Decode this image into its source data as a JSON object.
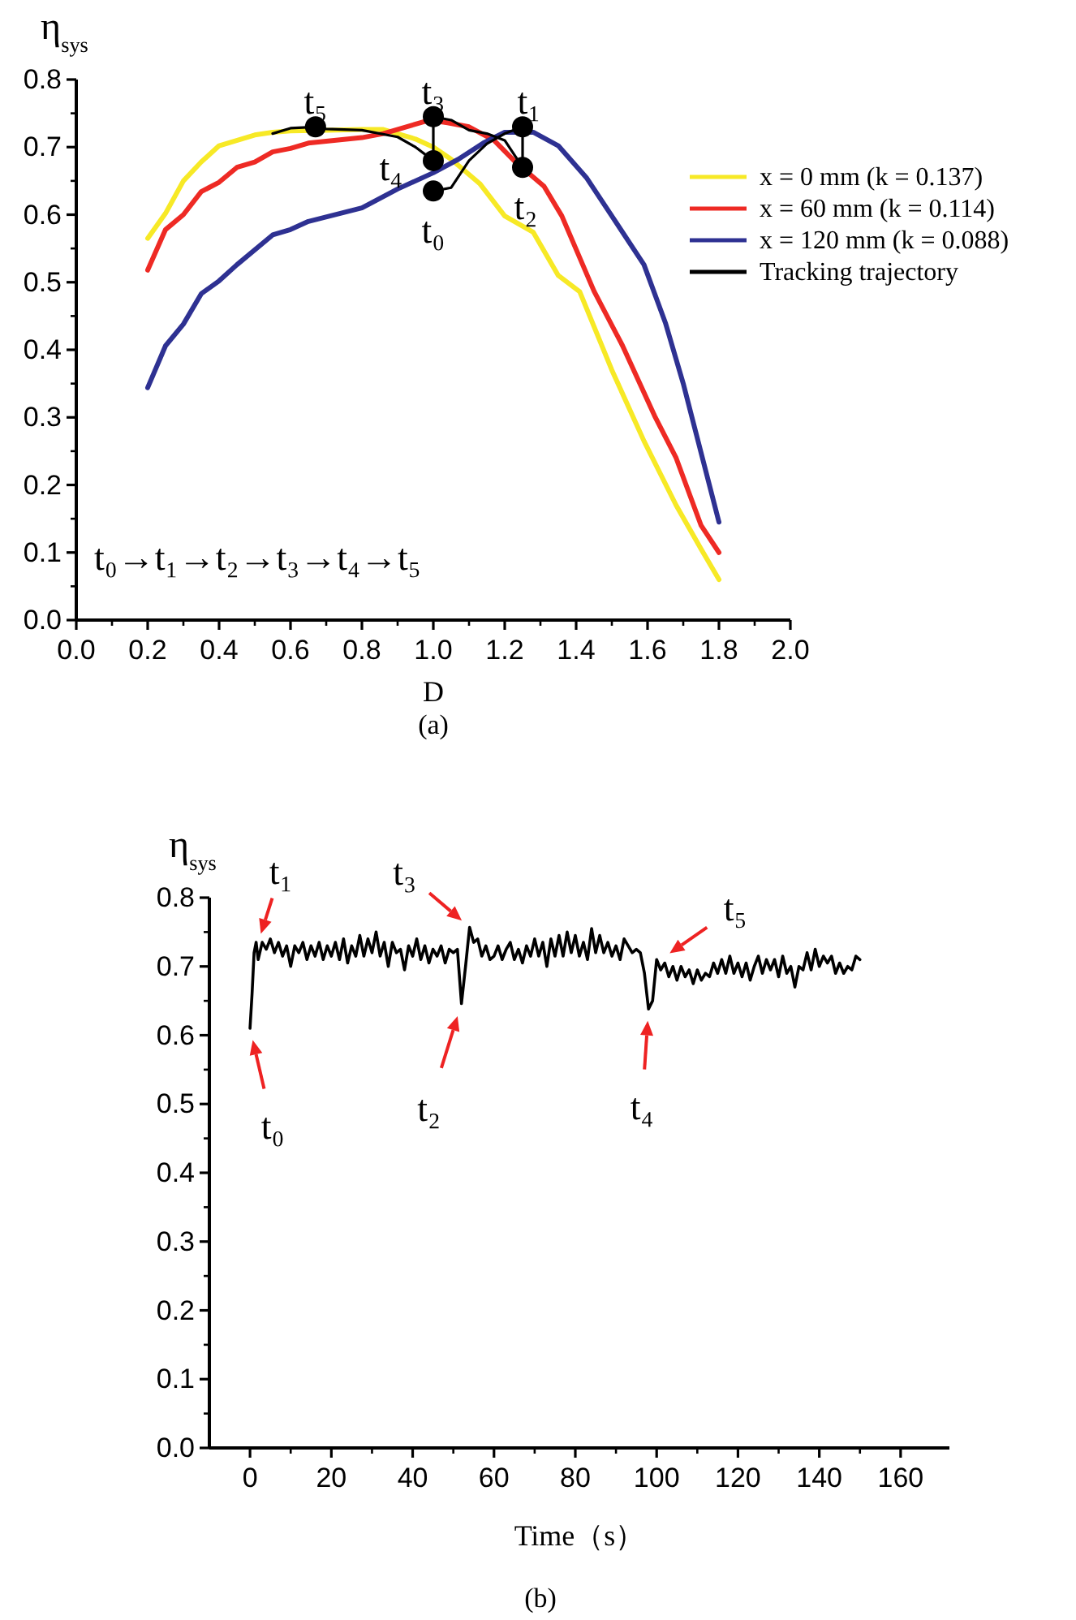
{
  "chart_data": [
    {
      "type": "line",
      "xlabel": "D",
      "ylabel": "η$_{sys}$",
      "xlim": [
        0,
        2
      ],
      "ylim": [
        0,
        0.8
      ],
      "xticks": [
        {
          "value": 0,
          "label": "0.0"
        },
        0.2,
        0.4,
        0.6,
        0.8,
        {
          "value": 1,
          "label": "1.0"
        },
        1.2,
        1.4,
        1.6,
        1.8,
        {
          "value": 2,
          "label": "2.0"
        }
      ],
      "yticks": [
        {
          "value": 0,
          "label": "0.0"
        },
        0.1,
        0.2,
        0.3,
        0.4,
        0.5,
        0.6,
        0.7,
        0.8
      ],
      "legend": "top right",
      "series": [
        {
          "name": "x = 0 mm (k = 0.137)",
          "color": "#f7e926",
          "x": [
            0.2,
            0.25,
            0.3,
            0.35,
            0.4,
            0.5,
            0.55,
            0.6,
            0.7,
            0.8,
            0.86,
            0.95,
            1.0,
            1.05,
            1.13,
            1.2,
            1.28,
            1.35,
            1.41,
            1.5,
            1.59,
            1.68,
            1.75,
            1.8
          ],
          "values": [
            0.565,
            0.602,
            0.65,
            0.678,
            0.702,
            0.718,
            0.722,
            0.724,
            0.725,
            0.726,
            0.726,
            0.712,
            0.7,
            0.682,
            0.646,
            0.598,
            0.574,
            0.51,
            0.486,
            0.37,
            0.265,
            0.17,
            0.105,
            0.06
          ]
        },
        {
          "name": "x = 60 mm (k = 0.114)",
          "color": "#ee2a24",
          "x": [
            0.2,
            0.25,
            0.3,
            0.35,
            0.4,
            0.45,
            0.5,
            0.55,
            0.6,
            0.65,
            0.8,
            0.86,
            0.99,
            1.04,
            1.1,
            1.17,
            1.23,
            1.31,
            1.36,
            1.45,
            1.53,
            1.62,
            1.68,
            1.75,
            1.8
          ],
          "values": [
            0.518,
            0.578,
            0.6,
            0.634,
            0.648,
            0.67,
            0.678,
            0.693,
            0.698,
            0.706,
            0.714,
            0.72,
            0.74,
            0.736,
            0.73,
            0.71,
            0.678,
            0.642,
            0.598,
            0.487,
            0.406,
            0.302,
            0.24,
            0.14,
            0.1
          ]
        },
        {
          "name": "x = 120 mm (k = 0.088)",
          "color": "#2e3192",
          "x": [
            0.2,
            0.25,
            0.3,
            0.35,
            0.4,
            0.45,
            0.55,
            0.6,
            0.65,
            0.8,
            0.9,
            1.0,
            1.07,
            1.14,
            1.2,
            1.28,
            1.35,
            1.43,
            1.5,
            1.59,
            1.65,
            1.7,
            1.8
          ],
          "values": [
            0.344,
            0.406,
            0.438,
            0.483,
            0.502,
            0.526,
            0.57,
            0.578,
            0.59,
            0.61,
            0.638,
            0.662,
            0.682,
            0.706,
            0.722,
            0.722,
            0.702,
            0.654,
            0.598,
            0.526,
            0.44,
            0.35,
            0.145
          ]
        },
        {
          "name": "Tracking trajectory",
          "color": "#000000",
          "x": [
            1.0,
            1.05,
            1.1,
            1.15,
            1.2,
            1.25,
            1.25,
            1.2,
            1.15,
            1.1,
            1.05,
            1.0,
            1.0,
            0.95,
            0.9,
            0.8,
            0.7,
            0.67,
            0.6,
            0.55
          ],
          "values": [
            0.635,
            0.64,
            0.68,
            0.705,
            0.72,
            0.73,
            0.67,
            0.71,
            0.72,
            0.725,
            0.74,
            0.745,
            0.68,
            0.7,
            0.715,
            0.725,
            0.727,
            0.73,
            0.728,
            0.72
          ]
        },
        {
          "type": "scatter",
          "marker": "circle",
          "color": "#000000",
          "x": [
            1.0,
            1.25,
            1.25,
            1.0,
            1.0,
            0.67
          ],
          "values": [
            0.635,
            0.73,
            0.67,
            0.745,
            0.68,
            0.73
          ]
        }
      ],
      "annotations": [
        {
          "text": "t₀",
          "x": 1.0,
          "y": 0.635
        },
        {
          "text": "t₁",
          "x": 1.25,
          "y": 0.73
        },
        {
          "text": "t₂",
          "x": 1.25,
          "y": 0.67
        },
        {
          "text": "t₃",
          "x": 1.0,
          "y": 0.745
        },
        {
          "text": "t₄",
          "x": 1.0,
          "y": 0.68
        },
        {
          "text": "t₅",
          "x": 0.67,
          "y": 0.73
        },
        "t₀→t₁→t₂→t₃→t₄→t₅",
        "(a)"
      ]
    },
    {
      "type": "line",
      "xlabel": "Time（s）",
      "ylabel": "η$_{sys}$",
      "xlim": [
        -10,
        172
      ],
      "ylim": [
        0,
        0.8
      ],
      "xticks": [
        0,
        20,
        40,
        60,
        80,
        100,
        120,
        140,
        160
      ],
      "yticks": [
        {
          "value": 0,
          "label": "0.0"
        },
        0.1,
        0.2,
        0.3,
        0.4,
        0.5,
        0.6,
        0.7,
        0.8
      ],
      "series": [
        {
          "color": "#000000",
          "x": [
            0,
            0.5,
            1,
            1.5,
            2,
            3,
            4,
            5,
            6,
            7,
            8,
            9,
            10,
            11,
            12,
            13,
            14,
            15,
            16,
            17,
            18,
            19,
            20,
            21,
            22,
            23,
            24,
            25,
            26,
            27,
            28,
            29,
            30,
            31,
            32,
            33,
            34,
            35,
            36,
            37,
            38,
            39,
            40,
            41,
            42,
            43,
            44,
            45,
            46,
            47,
            48,
            49,
            50,
            51,
            52,
            53,
            54,
            55,
            56,
            57,
            58,
            59,
            60,
            61,
            62,
            63,
            64,
            65,
            66,
            67,
            68,
            69,
            70,
            71,
            72,
            73,
            74,
            75,
            76,
            77,
            78,
            79,
            80,
            81,
            82,
            83,
            84,
            85,
            86,
            87,
            88,
            89,
            90,
            91,
            92,
            93,
            94,
            95,
            96,
            97,
            98,
            99,
            100,
            101,
            102,
            103,
            104,
            105,
            106,
            107,
            108,
            109,
            110,
            111,
            112,
            113,
            114,
            115,
            116,
            117,
            118,
            119,
            120,
            121,
            122,
            123,
            124,
            125,
            126,
            127,
            128,
            129,
            130,
            131,
            132,
            133,
            134,
            135,
            136,
            137,
            138,
            139,
            140,
            141,
            142,
            143,
            144,
            145,
            146,
            147,
            148,
            149,
            150
          ],
          "values": [
            0.61,
            0.66,
            0.72,
            0.735,
            0.71,
            0.735,
            0.725,
            0.74,
            0.72,
            0.735,
            0.715,
            0.73,
            0.7,
            0.73,
            0.72,
            0.735,
            0.71,
            0.73,
            0.715,
            0.735,
            0.71,
            0.73,
            0.715,
            0.735,
            0.71,
            0.74,
            0.705,
            0.73,
            0.715,
            0.745,
            0.715,
            0.74,
            0.72,
            0.75,
            0.715,
            0.735,
            0.7,
            0.735,
            0.72,
            0.725,
            0.695,
            0.73,
            0.715,
            0.74,
            0.71,
            0.73,
            0.705,
            0.725,
            0.715,
            0.73,
            0.705,
            0.725,
            0.72,
            0.725,
            0.646,
            0.7,
            0.757,
            0.735,
            0.74,
            0.715,
            0.73,
            0.71,
            0.715,
            0.73,
            0.71,
            0.725,
            0.735,
            0.71,
            0.725,
            0.705,
            0.73,
            0.715,
            0.74,
            0.715,
            0.735,
            0.7,
            0.74,
            0.715,
            0.745,
            0.715,
            0.75,
            0.72,
            0.745,
            0.715,
            0.735,
            0.71,
            0.755,
            0.72,
            0.745,
            0.72,
            0.735,
            0.715,
            0.73,
            0.71,
            0.74,
            0.73,
            0.72,
            0.725,
            0.72,
            0.69,
            0.638,
            0.65,
            0.71,
            0.695,
            0.705,
            0.685,
            0.7,
            0.68,
            0.7,
            0.685,
            0.695,
            0.675,
            0.695,
            0.68,
            0.69,
            0.685,
            0.705,
            0.69,
            0.71,
            0.69,
            0.715,
            0.69,
            0.705,
            0.685,
            0.705,
            0.68,
            0.7,
            0.715,
            0.69,
            0.71,
            0.695,
            0.71,
            0.685,
            0.715,
            0.69,
            0.7,
            0.67,
            0.7,
            0.695,
            0.72,
            0.695,
            0.725,
            0.7,
            0.715,
            0.705,
            0.715,
            0.69,
            0.705,
            0.69,
            0.7,
            0.695,
            0.715,
            0.71
          ]
        }
      ],
      "annotations": [
        {
          "text": "t₀",
          "x": 0,
          "y": 0.61
        },
        {
          "text": "t₁",
          "x": 2,
          "y": 0.735
        },
        {
          "text": "t₂",
          "x": 52,
          "y": 0.646
        },
        {
          "text": "t₃",
          "x": 54,
          "y": 0.757
        },
        {
          "text": "t₄",
          "x": 98,
          "y": 0.638
        },
        {
          "text": "t₅",
          "x": 101,
          "y": 0.71
        },
        "(b)"
      ]
    }
  ]
}
